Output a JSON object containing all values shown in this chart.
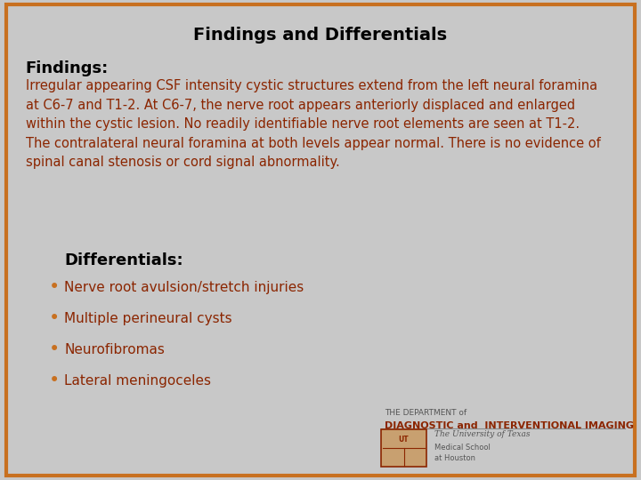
{
  "title": "Findings and Differentials",
  "title_fontsize": 14,
  "title_color": "#000000",
  "background_color": "#c8c8c8",
  "border_color": "#c87020",
  "border_linewidth": 3,
  "findings_label": "Findings:",
  "findings_label_fontsize": 13,
  "findings_label_color": "#000000",
  "findings_text": "Irregular appearing CSF intensity cystic structures extend from the left neural foramina\nat C6-7 and T1-2. At C6-7, the nerve root appears anteriorly displaced and enlarged\nwithin the cystic lesion. No readily identifiable nerve root elements are seen at T1-2.\nThe contralateral neural foramina at both levels appear normal. There is no evidence of\nspinal canal stenosis or cord signal abnormality.",
  "findings_text_fontsize": 10.5,
  "findings_text_color": "#8b2500",
  "differentials_label": "Differentials:",
  "differentials_label_fontsize": 13,
  "differentials_label_color": "#000000",
  "bullet_color": "#c87020",
  "bullet_items": [
    "Nerve root avulsion/stretch injuries",
    "Multiple perineural cysts",
    "Neurofibromas",
    "Lateral meningoceles"
  ],
  "bullet_fontsize": 11,
  "bullet_text_color": "#8b2500",
  "logo_text1": "THE DEPARTMENT of",
  "logo_text2": "DIAGNOSTIC and  INTERVENTIONAL IMAGING",
  "logo_text3": "The University of Texas",
  "logo_text4": "Medical School\nat Houston",
  "logo_color_main": "#8b2500",
  "logo_color_small": "#666666"
}
